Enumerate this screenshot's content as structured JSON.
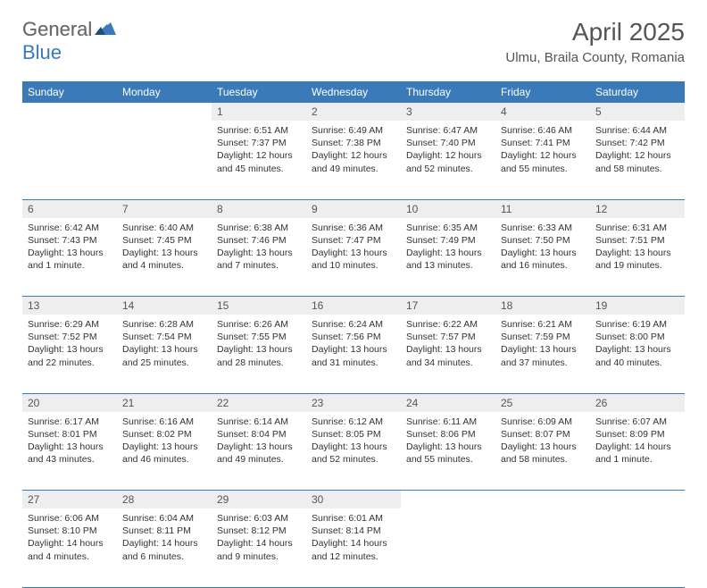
{
  "logo": {
    "part1": "General",
    "part2": "Blue"
  },
  "title": "April 2025",
  "location": "Ulmu, Braila County, Romania",
  "colors": {
    "header_bg": "#3a7ab8",
    "header_fg": "#ffffff",
    "daynum_bg": "#eeeeee",
    "border": "#3a7ab8",
    "logo_gray": "#6a6a6a",
    "logo_blue": "#3a7ab8"
  },
  "weekdays": [
    "Sunday",
    "Monday",
    "Tuesday",
    "Wednesday",
    "Thursday",
    "Friday",
    "Saturday"
  ],
  "weeks": [
    [
      null,
      null,
      {
        "n": "1",
        "sr": "6:51 AM",
        "ss": "7:37 PM",
        "dl": "12 hours and 45 minutes."
      },
      {
        "n": "2",
        "sr": "6:49 AM",
        "ss": "7:38 PM",
        "dl": "12 hours and 49 minutes."
      },
      {
        "n": "3",
        "sr": "6:47 AM",
        "ss": "7:40 PM",
        "dl": "12 hours and 52 minutes."
      },
      {
        "n": "4",
        "sr": "6:46 AM",
        "ss": "7:41 PM",
        "dl": "12 hours and 55 minutes."
      },
      {
        "n": "5",
        "sr": "6:44 AM",
        "ss": "7:42 PM",
        "dl": "12 hours and 58 minutes."
      }
    ],
    [
      {
        "n": "6",
        "sr": "6:42 AM",
        "ss": "7:43 PM",
        "dl": "13 hours and 1 minute."
      },
      {
        "n": "7",
        "sr": "6:40 AM",
        "ss": "7:45 PM",
        "dl": "13 hours and 4 minutes."
      },
      {
        "n": "8",
        "sr": "6:38 AM",
        "ss": "7:46 PM",
        "dl": "13 hours and 7 minutes."
      },
      {
        "n": "9",
        "sr": "6:36 AM",
        "ss": "7:47 PM",
        "dl": "13 hours and 10 minutes."
      },
      {
        "n": "10",
        "sr": "6:35 AM",
        "ss": "7:49 PM",
        "dl": "13 hours and 13 minutes."
      },
      {
        "n": "11",
        "sr": "6:33 AM",
        "ss": "7:50 PM",
        "dl": "13 hours and 16 minutes."
      },
      {
        "n": "12",
        "sr": "6:31 AM",
        "ss": "7:51 PM",
        "dl": "13 hours and 19 minutes."
      }
    ],
    [
      {
        "n": "13",
        "sr": "6:29 AM",
        "ss": "7:52 PM",
        "dl": "13 hours and 22 minutes."
      },
      {
        "n": "14",
        "sr": "6:28 AM",
        "ss": "7:54 PM",
        "dl": "13 hours and 25 minutes."
      },
      {
        "n": "15",
        "sr": "6:26 AM",
        "ss": "7:55 PM",
        "dl": "13 hours and 28 minutes."
      },
      {
        "n": "16",
        "sr": "6:24 AM",
        "ss": "7:56 PM",
        "dl": "13 hours and 31 minutes."
      },
      {
        "n": "17",
        "sr": "6:22 AM",
        "ss": "7:57 PM",
        "dl": "13 hours and 34 minutes."
      },
      {
        "n": "18",
        "sr": "6:21 AM",
        "ss": "7:59 PM",
        "dl": "13 hours and 37 minutes."
      },
      {
        "n": "19",
        "sr": "6:19 AM",
        "ss": "8:00 PM",
        "dl": "13 hours and 40 minutes."
      }
    ],
    [
      {
        "n": "20",
        "sr": "6:17 AM",
        "ss": "8:01 PM",
        "dl": "13 hours and 43 minutes."
      },
      {
        "n": "21",
        "sr": "6:16 AM",
        "ss": "8:02 PM",
        "dl": "13 hours and 46 minutes."
      },
      {
        "n": "22",
        "sr": "6:14 AM",
        "ss": "8:04 PM",
        "dl": "13 hours and 49 minutes."
      },
      {
        "n": "23",
        "sr": "6:12 AM",
        "ss": "8:05 PM",
        "dl": "13 hours and 52 minutes."
      },
      {
        "n": "24",
        "sr": "6:11 AM",
        "ss": "8:06 PM",
        "dl": "13 hours and 55 minutes."
      },
      {
        "n": "25",
        "sr": "6:09 AM",
        "ss": "8:07 PM",
        "dl": "13 hours and 58 minutes."
      },
      {
        "n": "26",
        "sr": "6:07 AM",
        "ss": "8:09 PM",
        "dl": "14 hours and 1 minute."
      }
    ],
    [
      {
        "n": "27",
        "sr": "6:06 AM",
        "ss": "8:10 PM",
        "dl": "14 hours and 4 minutes."
      },
      {
        "n": "28",
        "sr": "6:04 AM",
        "ss": "8:11 PM",
        "dl": "14 hours and 6 minutes."
      },
      {
        "n": "29",
        "sr": "6:03 AM",
        "ss": "8:12 PM",
        "dl": "14 hours and 9 minutes."
      },
      {
        "n": "30",
        "sr": "6:01 AM",
        "ss": "8:14 PM",
        "dl": "14 hours and 12 minutes."
      },
      null,
      null,
      null
    ]
  ],
  "labels": {
    "sunrise": "Sunrise:",
    "sunset": "Sunset:",
    "daylight": "Daylight:"
  }
}
